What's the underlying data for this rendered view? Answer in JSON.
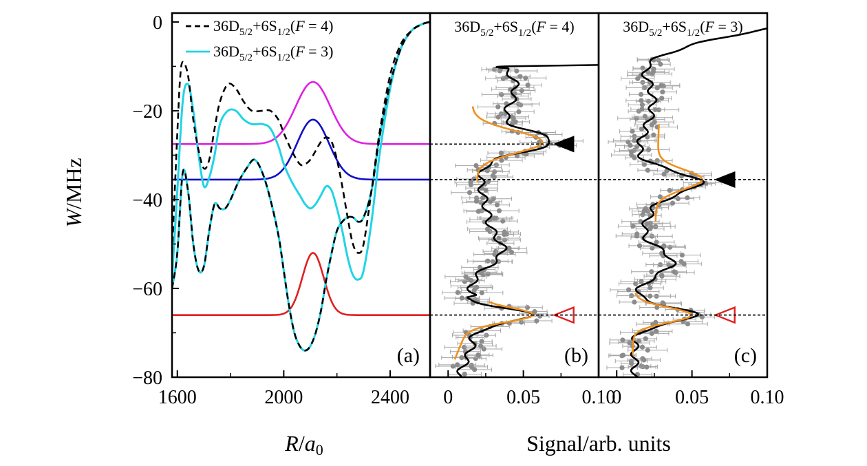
{
  "chart_data": [
    {
      "panel": "(a)",
      "type": "line",
      "xlabel": "R/a₀",
      "ylabel": "W/MHz",
      "xlim": [
        1580,
        2550
      ],
      "ylim": [
        -80,
        2
      ],
      "xticks": [
        "1600",
        "2000",
        "2400"
      ],
      "xtick_values": [
        1600,
        2000,
        2400
      ],
      "yticks": [
        "0",
        "−20",
        "−40",
        "−60",
        "−80"
      ],
      "ytick_values": [
        0,
        -20,
        -40,
        -60,
        -80
      ],
      "legend": [
        {
          "label": "36D5/2+6S1/2(F = 4)",
          "style": "dashed",
          "color": "#000000"
        },
        {
          "label": "36D5/2+6S1/2(F = 3)",
          "style": "solid",
          "color": "#22d3e6"
        }
      ],
      "series": [
        {
          "name": "upper-F4-dashed",
          "style": "dashed",
          "color": "#000000",
          "x": [
            1580,
            1600,
            1610,
            1620,
            1640,
            1660,
            1680,
            1700,
            1720,
            1740,
            1760,
            1790,
            1820,
            1850,
            1880,
            1920,
            1950,
            1980,
            2000,
            2030,
            2060,
            2080,
            2100,
            2120,
            2140,
            2160,
            2180,
            2200,
            2220,
            2240,
            2260,
            2280,
            2300,
            2330,
            2360,
            2400,
            2440,
            2480,
            2520,
            2550
          ],
          "y": [
            -52,
            -25,
            -13,
            -9,
            -12,
            -22,
            -29,
            -33,
            -31,
            -24,
            -18,
            -14,
            -15,
            -18,
            -20,
            -20,
            -20,
            -22,
            -25,
            -29,
            -32,
            -32,
            -31,
            -29,
            -27,
            -26,
            -27,
            -31,
            -37,
            -44,
            -50,
            -52,
            -50,
            -38,
            -25,
            -12,
            -5,
            -2,
            -0.5,
            0
          ]
        },
        {
          "name": "upper-F3-cyan",
          "style": "solid",
          "color": "#22d3e6",
          "x": [
            1580,
            1600,
            1620,
            1640,
            1660,
            1680,
            1700,
            1720,
            1740,
            1760,
            1790,
            1820,
            1850,
            1880,
            1920,
            1950,
            1980,
            2000,
            2030,
            2060,
            2080,
            2100,
            2120,
            2140,
            2160,
            2180,
            2200,
            2220,
            2240,
            2260,
            2280,
            2300,
            2330,
            2360,
            2400,
            2440,
            2480,
            2520,
            2550
          ],
          "y": [
            -58,
            -38,
            -18,
            -14,
            -20,
            -30,
            -37,
            -35,
            -30,
            -23,
            -20,
            -20,
            -22,
            -23,
            -23,
            -24,
            -28,
            -32,
            -36,
            -39,
            -41,
            -42,
            -41,
            -39,
            -37,
            -38,
            -42,
            -47,
            -53,
            -57,
            -58,
            -56,
            -45,
            -30,
            -15,
            -6,
            -2,
            -0.5,
            0
          ]
        },
        {
          "name": "lower-F4-dashed",
          "style": "dashed",
          "color": "#000000",
          "x": [
            1580,
            1600,
            1620,
            1640,
            1660,
            1680,
            1700,
            1720,
            1740,
            1760,
            1780,
            1800,
            1830,
            1860,
            1890,
            1920,
            1950,
            1980,
            2000,
            2020,
            2040,
            2060,
            2080,
            2100,
            2120,
            2140,
            2160,
            2180,
            2200,
            2220,
            2240,
            2260,
            2280,
            2300,
            2330,
            2360,
            2400,
            2440,
            2480,
            2520,
            2550
          ],
          "y": [
            -60,
            -52,
            -34,
            -38,
            -50,
            -56,
            -55,
            -47,
            -41,
            -42,
            -42,
            -40,
            -36,
            -33,
            -31,
            -34,
            -40,
            -48,
            -56,
            -64,
            -70,
            -73,
            -74,
            -73,
            -70,
            -65,
            -58,
            -52,
            -47,
            -45,
            -44,
            -44,
            -45,
            -44,
            -38,
            -26,
            -14,
            -6,
            -2,
            -0.5,
            0
          ]
        },
        {
          "name": "lower-F3-cyan",
          "style": "solid",
          "color": "#22d3e6",
          "x": [
            1580,
            1600,
            1620,
            1640,
            1660,
            1680,
            1700,
            1720,
            1740,
            1760,
            1780,
            1800,
            1830,
            1860,
            1890,
            1920,
            1950,
            1980,
            2000,
            2020,
            2040,
            2060,
            2080,
            2100,
            2120,
            2140,
            2160,
            2180,
            2200,
            2220,
            2240,
            2260,
            2280,
            2300,
            2330,
            2360,
            2400,
            2440,
            2480,
            2520,
            2550
          ],
          "y": [
            -60,
            -52,
            -34,
            -38,
            -50,
            -56,
            -55,
            -47,
            -41,
            -42,
            -42,
            -40,
            -36,
            -33,
            -31,
            -34,
            -40,
            -48,
            -56,
            -64,
            -70,
            -73,
            -74,
            -73,
            -70,
            -65,
            -58,
            -52,
            -47,
            -45,
            -44,
            -44,
            -45,
            -44,
            -38,
            -26,
            -14,
            -6,
            -2,
            -0.5,
            0
          ]
        }
      ],
      "gaussians": [
        {
          "name": "magenta",
          "color": "#e020e0",
          "baseline": -27.5,
          "peak": -13.5,
          "center": 2110,
          "sigma": 65
        },
        {
          "name": "blue",
          "color": "#1010c8",
          "baseline": -35.5,
          "peak": -22,
          "center": 2110,
          "sigma": 60
        },
        {
          "name": "red",
          "color": "#e02020",
          "baseline": -66,
          "peak": -52,
          "center": 2110,
          "sigma": 40
        }
      ],
      "label": "(a)"
    },
    {
      "panel": "(b)",
      "type": "scatter",
      "title": "36D5/2+6S1/2(F = 4)",
      "xlim": [
        -0.012,
        0.1
      ],
      "ylim": [
        -80,
        2
      ],
      "xticks": [
        "0",
        "0.05",
        "0.10"
      ],
      "xtick_values": [
        0,
        0.05,
        0.1
      ],
      "xlabel": "Signal/arb. units",
      "markers": [
        {
          "type": "filled-triangle",
          "y": -27.5,
          "x": 0.077
        },
        {
          "type": "open-triangle",
          "y": -66,
          "x": 0.077
        }
      ],
      "label": "(b)"
    },
    {
      "panel": "(c)",
      "type": "scatter",
      "title": "36D5/2+6S1/2(F = 3)",
      "xlim": [
        -0.012,
        0.1
      ],
      "ylim": [
        -80,
        2
      ],
      "xticks": [
        "0",
        "0.05",
        "0.10"
      ],
      "xtick_values": [
        0,
        0.05,
        0.1
      ],
      "markers": [
        {
          "type": "filled-triangle",
          "y": -35.5,
          "x": 0.072
        },
        {
          "type": "open-triangle",
          "y": -66,
          "x": 0.072
        }
      ],
      "label": "(c)"
    }
  ],
  "shared": {
    "xlabel_right": "Signal/arb. units",
    "dashed_levels": [
      -27.5,
      -35.5,
      -66
    ]
  }
}
